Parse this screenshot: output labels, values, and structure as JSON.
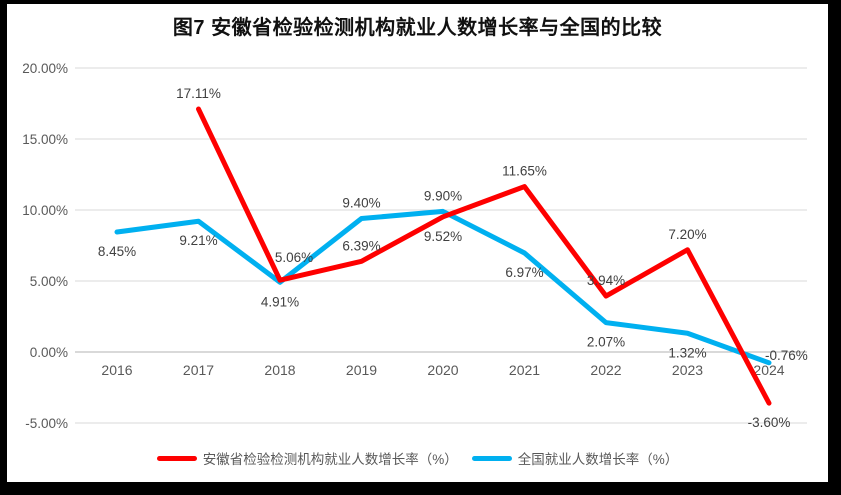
{
  "window": {
    "frame_color": "#000000",
    "panel_background": "#ffffff"
  },
  "chart_data": {
    "type": "line",
    "title": "图7 安徽省检验检测机构就业人数增长率与全国的比较",
    "categories": [
      "2016",
      "2017",
      "2018",
      "2019",
      "2020",
      "2021",
      "2022",
      "2023",
      "2024"
    ],
    "y_axis": {
      "tick_labels": [
        "20.00%",
        "15.00%",
        "10.00%",
        "5.00%",
        "0.00%",
        "-5.00%"
      ],
      "tick_values": [
        20,
        15,
        10,
        5,
        0,
        -5
      ],
      "min": -5,
      "max": 20,
      "format": "percent"
    },
    "grid": true,
    "legend_position": "bottom",
    "series": [
      {
        "name": "安徽省检验检测机构就业人数增长率（%）",
        "color": "#fe0000",
        "values": [
          null,
          17.11,
          5.06,
          6.39,
          9.52,
          11.65,
          3.94,
          7.2,
          -3.6
        ],
        "data_labels": [
          null,
          "17.11%",
          "5.06%",
          "6.39%",
          "9.52%",
          "11.65%",
          "3.94%",
          "7.20%",
          "-3.60%"
        ],
        "label_sides": [
          null,
          "above",
          "above-right",
          "above",
          "below",
          "above",
          "above",
          "above",
          "below"
        ]
      },
      {
        "name": "全国就业人数增长率（%）",
        "color": "#00b0f0",
        "values": [
          8.45,
          9.21,
          4.91,
          9.4,
          9.9,
          6.97,
          2.07,
          1.32,
          -0.76
        ],
        "data_labels": [
          "8.45%",
          "9.21%",
          "4.91%",
          "9.40%",
          "9.90%",
          "6.97%",
          "2.07%",
          "1.32%",
          "-0.76%"
        ],
        "label_sides": [
          "below",
          "below",
          "below",
          "above",
          "above",
          "below",
          "below",
          "below",
          "right"
        ]
      }
    ],
    "style": {
      "grid_color": "#d9d9d9",
      "zero_line_color": "#b3b3b3",
      "axis_label_color": "#595959",
      "data_label_color": "#404040",
      "title_color": "#111111",
      "line_width": 5
    }
  }
}
